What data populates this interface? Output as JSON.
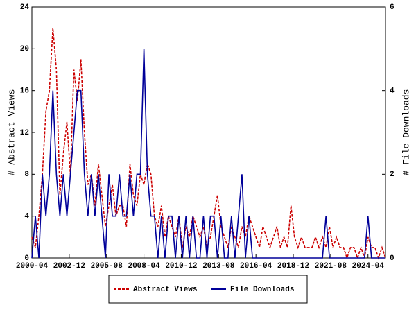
{
  "chart_data": {
    "type": "line",
    "x": [
      "2000-04",
      "2000-07",
      "2000-10",
      "2001-01",
      "2001-04",
      "2001-07",
      "2001-10",
      "2002-01",
      "2002-04",
      "2002-07",
      "2002-10",
      "2003-01",
      "2003-04",
      "2003-07",
      "2003-10",
      "2004-01",
      "2004-04",
      "2004-07",
      "2004-10",
      "2005-01",
      "2005-04",
      "2005-07",
      "2005-10",
      "2006-01",
      "2006-04",
      "2006-07",
      "2006-10",
      "2007-01",
      "2007-04",
      "2007-07",
      "2007-10",
      "2008-01",
      "2008-04",
      "2008-07",
      "2008-10",
      "2009-01",
      "2009-04",
      "2009-07",
      "2009-10",
      "2010-01",
      "2010-04",
      "2010-07",
      "2010-10",
      "2011-01",
      "2011-04",
      "2011-07",
      "2011-10",
      "2012-01",
      "2012-04",
      "2012-07",
      "2012-10",
      "2013-01",
      "2013-04",
      "2013-07",
      "2013-10",
      "2014-01",
      "2014-04",
      "2014-07",
      "2014-10",
      "2015-01",
      "2015-04",
      "2015-07",
      "2015-10",
      "2016-01",
      "2016-04",
      "2016-07",
      "2016-10",
      "2017-01",
      "2017-04",
      "2017-07",
      "2017-10",
      "2018-01",
      "2018-04",
      "2018-07",
      "2018-10",
      "2019-01",
      "2019-04",
      "2019-07",
      "2019-10",
      "2020-01",
      "2020-04",
      "2020-07",
      "2020-10",
      "2021-01",
      "2021-04",
      "2021-07",
      "2021-10",
      "2022-01",
      "2022-04",
      "2022-07",
      "2022-10",
      "2023-01",
      "2023-04",
      "2023-07",
      "2023-10",
      "2024-01",
      "2024-04",
      "2024-07",
      "2024-10",
      "2025-01",
      "2025-04",
      "2025-07"
    ],
    "xlim": [
      "2000-04",
      "2025-07"
    ],
    "xticks": [
      "2000-04",
      "2002-12",
      "2005-08",
      "2008-04",
      "2010-12",
      "2013-08",
      "2016-04",
      "2018-12",
      "2021-08",
      "2024-04"
    ],
    "ylabel": "# Abstract Views",
    "y2label": "# File Downloads",
    "ylim": [
      0,
      24
    ],
    "yticks": [
      0,
      4,
      8,
      12,
      16,
      20,
      24
    ],
    "y2lim": [
      0,
      6
    ],
    "y2ticks": [
      0,
      2,
      4,
      6
    ],
    "legend": "bottom",
    "series": [
      {
        "name": "Abstract Views",
        "color": "#cc0000",
        "dashed": true,
        "values": [
          2,
          1,
          4,
          8,
          14,
          16,
          22,
          18,
          6,
          10,
          13,
          8,
          18,
          15,
          19,
          12,
          7,
          8,
          5,
          9,
          6,
          3,
          5,
          7,
          4,
          5,
          5,
          3,
          9,
          6,
          5,
          8,
          7,
          9,
          8,
          4,
          3,
          5,
          2,
          4,
          3,
          2,
          4,
          1,
          3,
          2,
          4,
          3,
          2,
          3,
          1,
          2,
          4,
          6,
          3,
          2,
          1,
          3,
          2,
          1,
          3,
          2,
          4,
          3,
          2,
          1,
          3,
          2,
          1,
          2,
          3,
          1,
          2,
          1,
          5,
          2,
          1,
          2,
          1,
          1,
          1,
          2,
          1,
          2,
          1,
          3,
          1,
          2,
          1,
          1,
          0,
          1,
          1,
          0,
          1,
          0,
          2,
          1,
          1,
          0,
          1,
          0
        ]
      },
      {
        "name": "File Downloads",
        "color": "#000099",
        "dashed": false,
        "axis": "y2",
        "values": [
          0,
          1,
          0,
          2,
          1,
          2,
          4,
          2,
          1,
          2,
          1,
          2,
          3,
          4,
          4,
          2,
          1,
          2,
          1,
          2,
          1,
          0,
          2,
          1,
          1,
          2,
          1,
          1,
          2,
          1,
          2,
          2,
          5,
          2,
          1,
          1,
          0,
          1,
          0,
          1,
          1,
          0,
          1,
          0,
          1,
          0,
          1,
          0,
          0,
          1,
          0,
          1,
          1,
          0,
          1,
          0,
          0,
          1,
          0,
          1,
          2,
          0,
          1,
          0,
          0,
          0,
          0,
          0,
          0,
          0,
          0,
          0,
          0,
          0,
          0,
          0,
          0,
          0,
          0,
          0,
          0,
          0,
          0,
          0,
          1,
          0,
          0,
          0,
          0,
          0,
          0,
          0,
          0,
          0,
          0,
          0,
          1,
          0,
          0,
          0,
          0,
          0
        ]
      }
    ]
  }
}
